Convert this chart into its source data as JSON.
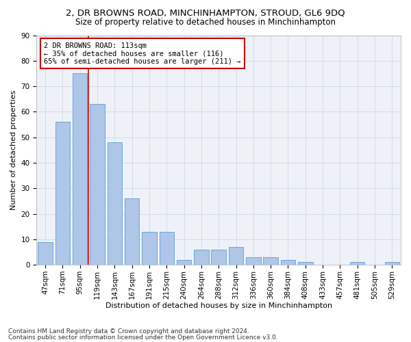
{
  "title1": "2, DR BROWNS ROAD, MINCHINHAMPTON, STROUD, GL6 9DQ",
  "title2": "Size of property relative to detached houses in Minchinhampton",
  "xlabel": "Distribution of detached houses by size in Minchinhampton",
  "ylabel": "Number of detached properties",
  "categories": [
    "47sqm",
    "71sqm",
    "95sqm",
    "119sqm",
    "143sqm",
    "167sqm",
    "191sqm",
    "215sqm",
    "240sqm",
    "264sqm",
    "288sqm",
    "312sqm",
    "336sqm",
    "360sqm",
    "384sqm",
    "408sqm",
    "433sqm",
    "457sqm",
    "481sqm",
    "505sqm",
    "529sqm"
  ],
  "values": [
    9,
    56,
    75,
    63,
    48,
    26,
    13,
    13,
    2,
    6,
    6,
    7,
    3,
    3,
    2,
    1,
    0,
    0,
    1,
    0,
    1
  ],
  "bar_color": "#aec6e8",
  "bar_edge_color": "#5a9fd4",
  "vline_x": 2.5,
  "vline_color": "#cc0000",
  "annotation_text": "2 DR BROWNS ROAD: 113sqm\n← 35% of detached houses are smaller (116)\n65% of semi-detached houses are larger (211) →",
  "annotation_box_color": "#ffffff",
  "annotation_box_edge": "#cc0000",
  "ylim": [
    0,
    90
  ],
  "yticks": [
    0,
    10,
    20,
    30,
    40,
    50,
    60,
    70,
    80,
    90
  ],
  "grid_color": "#d0d8e8",
  "bg_color": "#eef2f8",
  "footer1": "Contains HM Land Registry data © Crown copyright and database right 2024.",
  "footer2": "Contains public sector information licensed under the Open Government Licence v3.0.",
  "title1_fontsize": 9.5,
  "title2_fontsize": 8.5,
  "xlabel_fontsize": 8,
  "ylabel_fontsize": 8,
  "tick_fontsize": 7.5,
  "footer_fontsize": 6.5,
  "annotation_fontsize": 7.5
}
